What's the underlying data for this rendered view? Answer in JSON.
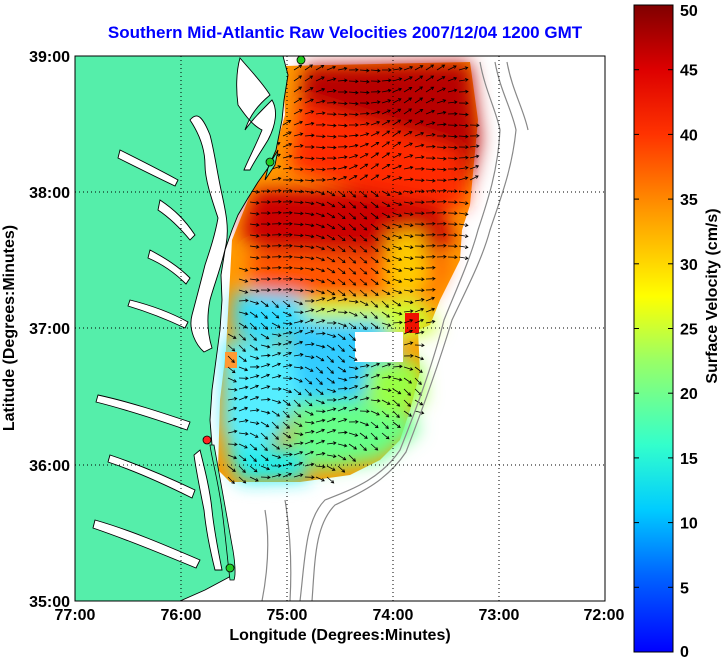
{
  "title": "Southern Mid-Atlantic Raw Velocities 2007/12/04 1200 GMT",
  "x_axis": {
    "label": "Longitude (Degrees:Minutes)",
    "ticks": [
      "77:00",
      "76:00",
      "75:00",
      "74:00",
      "73:00",
      "72:00"
    ]
  },
  "y_axis": {
    "label": "Latitude (Degrees:Minutes)",
    "ticks": [
      "39:00",
      "38:00",
      "37:00",
      "36:00",
      "35:00"
    ]
  },
  "colorbar": {
    "label": "Surface Velocity (cm/s)",
    "ticks": [
      "50",
      "45",
      "40",
      "35",
      "30",
      "25",
      "20",
      "15",
      "10",
      "5",
      "0"
    ],
    "range": [
      0,
      50
    ],
    "colormap": "jet"
  },
  "colors": {
    "land": "#55eeaa",
    "ocean": "#ffffff",
    "title": "#0000ff",
    "grid": "#000000",
    "station_active": "#22cc22",
    "station_inactive": "#ff2222"
  },
  "stations": [
    {
      "status": "active"
    },
    {
      "status": "active"
    },
    {
      "status": "inactive"
    },
    {
      "status": "active"
    }
  ]
}
